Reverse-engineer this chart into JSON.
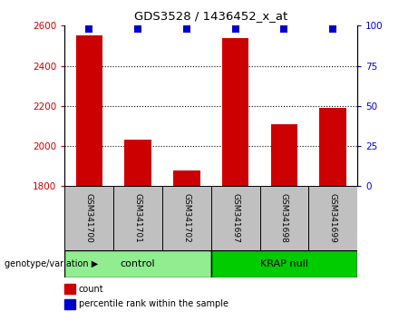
{
  "title": "GDS3528 / 1436452_x_at",
  "samples": [
    "GSM341700",
    "GSM341701",
    "GSM341702",
    "GSM341697",
    "GSM341698",
    "GSM341699"
  ],
  "counts": [
    2553,
    2030,
    1880,
    2540,
    2110,
    2190
  ],
  "ylim_left": [
    1800,
    2600
  ],
  "ylim_right": [
    0,
    100
  ],
  "yticks_left": [
    1800,
    2000,
    2200,
    2400,
    2600
  ],
  "yticks_right": [
    0,
    25,
    50,
    75,
    100
  ],
  "bar_color": "#cc0000",
  "dot_color": "#0000cc",
  "groups": [
    {
      "label": "control",
      "indices": [
        0,
        1,
        2
      ],
      "color": "#90ee90"
    },
    {
      "label": "KRAP null",
      "indices": [
        3,
        4,
        5
      ],
      "color": "#00cc00"
    }
  ],
  "group_label_prefix": "genotype/variation",
  "legend_count_label": "count",
  "legend_percentile_label": "percentile rank within the sample",
  "tick_label_color_left": "#cc0000",
  "tick_label_color_right": "#0000cc",
  "group_box_color": "#c0c0c0",
  "bar_bottom": 1800,
  "dot_size": 30,
  "grid_yticks": [
    2000,
    2200,
    2400
  ]
}
